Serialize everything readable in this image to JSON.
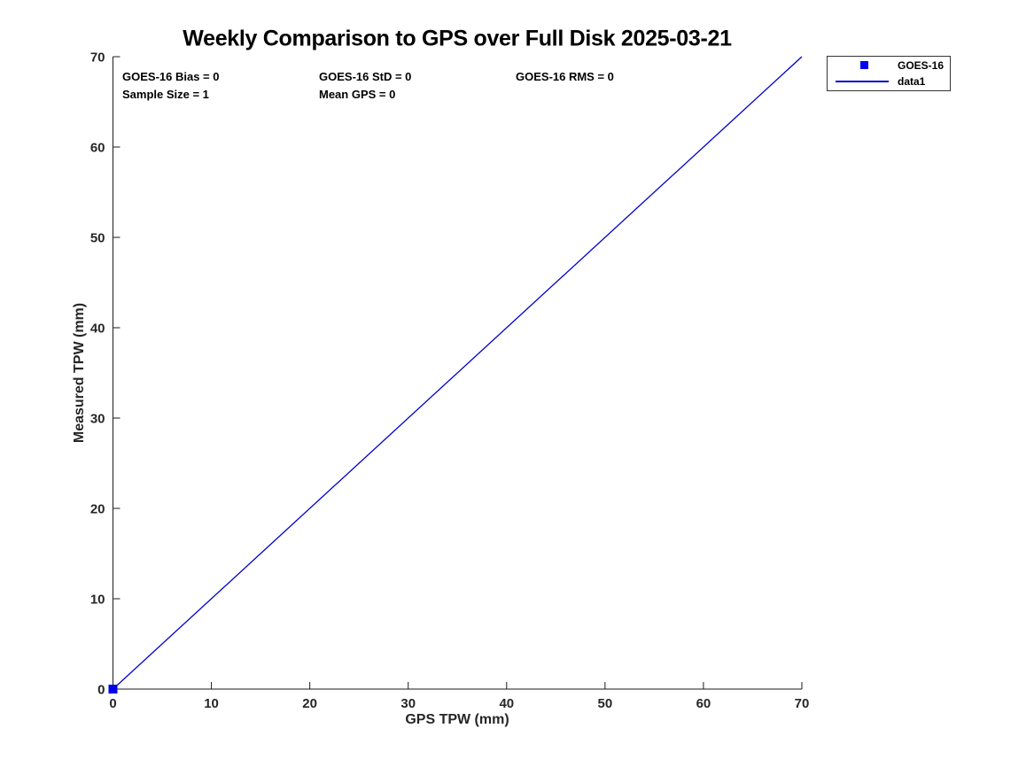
{
  "title": "Weekly Comparison to GPS over Full Disk 2025-03-21",
  "annotations": {
    "bias": "GOES-16 Bias = 0",
    "std": "GOES-16 StD = 0",
    "rms": "GOES-16 RMS = 0",
    "sample_size": "Sample Size = 1",
    "mean_gps": "Mean GPS = 0"
  },
  "legend": {
    "entries": [
      {
        "label": "GOES-16",
        "swatch": "square-marker",
        "color": "#0000ee"
      },
      {
        "label": "data1",
        "swatch": "line",
        "color": "#0000cc"
      }
    ],
    "position": "outside-top-right"
  },
  "chart_data": {
    "type": "scatter",
    "title": "Weekly Comparison to GPS over Full Disk 2025-03-21",
    "xlabel": "GPS TPW (mm)",
    "ylabel": "Measured TPW (mm)",
    "xlim": [
      0,
      70
    ],
    "ylim": [
      0,
      70
    ],
    "xticks": [
      0,
      10,
      20,
      30,
      40,
      50,
      60,
      70
    ],
    "yticks": [
      0,
      10,
      20,
      30,
      40,
      50,
      60,
      70
    ],
    "grid": false,
    "box": false,
    "axis_color": "#1a1a1a",
    "tick_label_color": "#262626",
    "series": [
      {
        "name": "GOES-16",
        "type": "scatter",
        "marker": "square",
        "color": "#0000ee",
        "points": [
          [
            0,
            0
          ]
        ]
      },
      {
        "name": "data1",
        "type": "line",
        "color": "#0000cc",
        "points": [
          [
            0,
            0
          ],
          [
            70,
            70
          ]
        ]
      }
    ],
    "stats": {
      "goes16_bias": 0,
      "goes16_std": 0,
      "goes16_rms": 0,
      "sample_size": 1,
      "mean_gps": 0
    }
  }
}
